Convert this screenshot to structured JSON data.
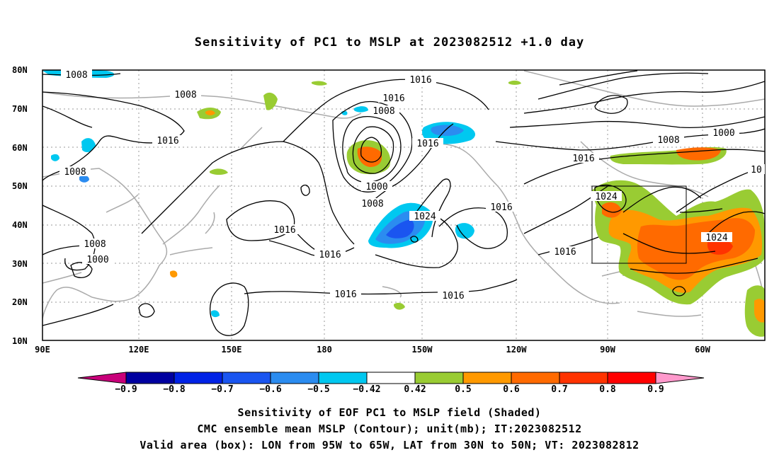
{
  "title": "Sensitivity of PC1 to MSLP at 2023082512 +1.0 day",
  "map": {
    "lat_labels": [
      "80N",
      "70N",
      "60N",
      "50N",
      "40N",
      "30N",
      "20N",
      "10N"
    ],
    "lon_labels": [
      "90E",
      "120E",
      "150E",
      "180",
      "150W",
      "120W",
      "90W",
      "60W"
    ],
    "contour_labels": [
      {
        "text": "1008"
      },
      {
        "text": "1008"
      },
      {
        "text": "1016"
      },
      {
        "text": "1008"
      },
      {
        "text": "1008"
      },
      {
        "text": "1000"
      },
      {
        "text": "1016"
      },
      {
        "text": "1016"
      },
      {
        "text": "1008"
      },
      {
        "text": "1016"
      },
      {
        "text": "1000"
      },
      {
        "text": "1008"
      },
      {
        "text": "1024"
      },
      {
        "text": "1016"
      },
      {
        "text": "1016"
      },
      {
        "text": "1016"
      },
      {
        "text": "1016"
      },
      {
        "text": "1016"
      },
      {
        "text": "1016"
      },
      {
        "text": "1024"
      },
      {
        "text": "1016"
      },
      {
        "text": "1008"
      },
      {
        "text": "1000"
      },
      {
        "text": "10"
      }
    ],
    "box": {
      "lon": "95W to 65W",
      "lat": "30N to 50N"
    }
  },
  "colorbar": {
    "labels": [
      "−0.9",
      "−0.8",
      "−0.7",
      "−0.6",
      "−0.5",
      "−0.42",
      "0.42",
      "0.5",
      "0.6",
      "0.7",
      "0.8",
      "0.9"
    ],
    "colors": [
      "#0000a0",
      "#0022e6",
      "#1a55f0",
      "#2b8cf0",
      "#00c8f0",
      "#ffffff",
      "#99cc33",
      "#ff9900",
      "#ff6a00",
      "#ff3300",
      "#ff0000"
    ],
    "under_color": "#c8007a",
    "over_color": "#ff99cc"
  },
  "captions": [
    "Sensitivity of EOF PC1 to MSLP field (Shaded)",
    "CMC ensemble mean MSLP (Contour); unit(mb); IT:2023082512",
    "Valid area (box): LON from 95W to 65W, LAT from 30N to 50N; VT: 2023082812"
  ]
}
